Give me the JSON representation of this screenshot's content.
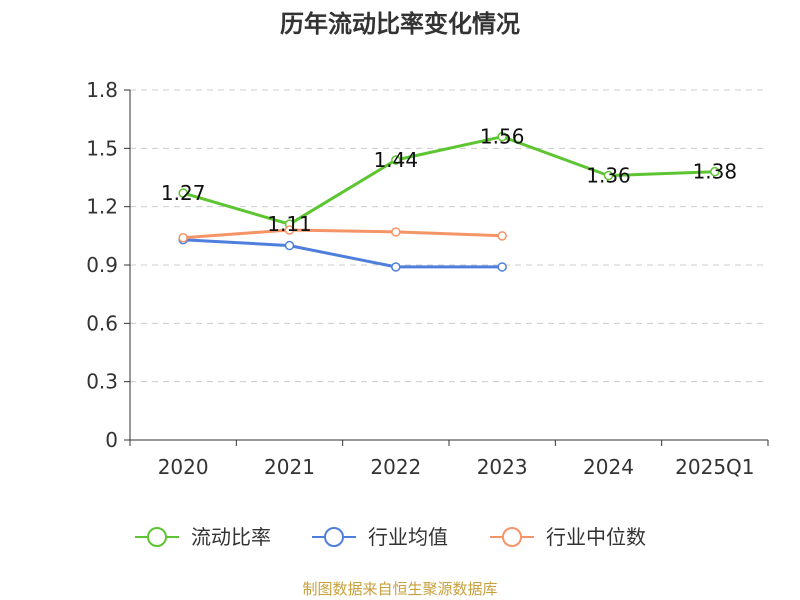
{
  "chart_data": {
    "type": "line",
    "title": "历年流动比率变化情况",
    "categories": [
      "2020",
      "2021",
      "2022",
      "2023",
      "2024",
      "2025Q1"
    ],
    "ylim": [
      0,
      1.8
    ],
    "yticks": [
      "0",
      "0.3",
      "0.6",
      "0.9",
      "1.2",
      "1.5",
      "1.8"
    ],
    "grid": true,
    "legend_position": "bottom",
    "series": [
      {
        "name": "流动比率",
        "color": "#5cc531",
        "values": [
          1.27,
          1.11,
          1.44,
          1.56,
          1.36,
          1.38
        ],
        "labels": [
          "1.27",
          "1.11",
          "1.44",
          "1.56",
          "1.36",
          "1.38"
        ],
        "show_labels": true
      },
      {
        "name": "行业均值",
        "color": "#4f7fdc",
        "values": [
          1.03,
          1.0,
          0.89,
          0.89,
          null,
          null
        ],
        "show_labels": false
      },
      {
        "name": "行业中位数",
        "color": "#f59466",
        "values": [
          1.04,
          1.08,
          1.07,
          1.05,
          null,
          null
        ],
        "show_labels": false
      }
    ]
  },
  "source": "制图数据来自恒生聚源数据库"
}
